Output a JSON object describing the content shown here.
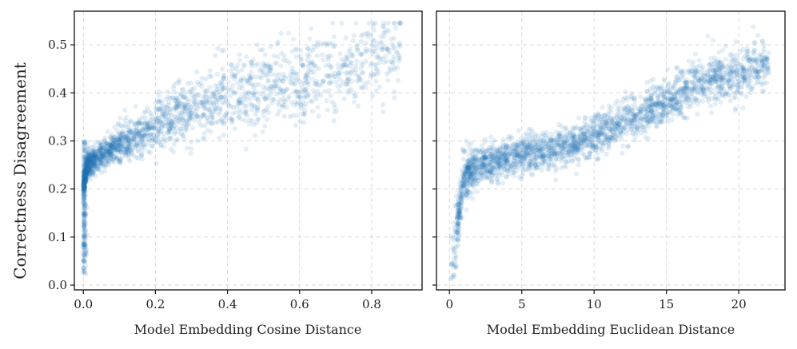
{
  "figure": {
    "shared_ylabel": "Correctness Disagreement"
  },
  "chart_data": [
    {
      "type": "scatter",
      "title": "",
      "xlabel": "Model Embedding Cosine Distance",
      "ylabel": "Correctness Disagreement",
      "xlim": [
        -0.025,
        0.94
      ],
      "ylim": [
        -0.01,
        0.57
      ],
      "xticks": [
        0.0,
        0.2,
        0.4,
        0.6,
        0.8
      ],
      "xtick_labels": [
        "0.0",
        "0.2",
        "0.4",
        "0.6",
        "0.8"
      ],
      "yticks": [
        0.0,
        0.1,
        0.2,
        0.3,
        0.4,
        0.5
      ],
      "ytick_labels": [
        "0.0",
        "0.1",
        "0.2",
        "0.3",
        "0.4",
        "0.5"
      ],
      "grid": true,
      "color": "#1f77b4",
      "point_opacity": 0.12,
      "trend_points": [
        {
          "x": 0.0,
          "y": 0.02
        },
        {
          "x": 0.0,
          "y": 0.1
        },
        {
          "x": 0.0,
          "y": 0.2
        },
        {
          "x": 0.01,
          "y": 0.25
        },
        {
          "x": 0.05,
          "y": 0.27
        },
        {
          "x": 0.1,
          "y": 0.29
        },
        {
          "x": 0.2,
          "y": 0.33
        },
        {
          "x": 0.3,
          "y": 0.37
        },
        {
          "x": 0.4,
          "y": 0.39
        },
        {
          "x": 0.5,
          "y": 0.41
        },
        {
          "x": 0.6,
          "y": 0.42
        },
        {
          "x": 0.7,
          "y": 0.44
        },
        {
          "x": 0.8,
          "y": 0.47
        },
        {
          "x": 0.88,
          "y": 0.5
        }
      ],
      "n_points": 2200
    },
    {
      "type": "scatter",
      "title": "",
      "xlabel": "Model Embedding Euclidean Distance",
      "ylabel": "",
      "xlim": [
        -0.9,
        23.2
      ],
      "ylim": [
        -0.01,
        0.57
      ],
      "xticks": [
        0,
        5,
        10,
        15,
        20
      ],
      "xtick_labels": [
        "0",
        "5",
        "10",
        "15",
        "20"
      ],
      "yticks": [
        0.0,
        0.1,
        0.2,
        0.3,
        0.4,
        0.5
      ],
      "ytick_labels": [],
      "grid": true,
      "color": "#1f77b4",
      "point_opacity": 0.12,
      "trend_points": [
        {
          "x": 0.2,
          "y": 0.03
        },
        {
          "x": 0.5,
          "y": 0.12
        },
        {
          "x": 1,
          "y": 0.22
        },
        {
          "x": 2,
          "y": 0.25
        },
        {
          "x": 5,
          "y": 0.27
        },
        {
          "x": 8,
          "y": 0.29
        },
        {
          "x": 10,
          "y": 0.31
        },
        {
          "x": 12,
          "y": 0.34
        },
        {
          "x": 15,
          "y": 0.38
        },
        {
          "x": 17,
          "y": 0.42
        },
        {
          "x": 20,
          "y": 0.44
        },
        {
          "x": 22,
          "y": 0.46
        }
      ],
      "n_points": 2500
    }
  ]
}
